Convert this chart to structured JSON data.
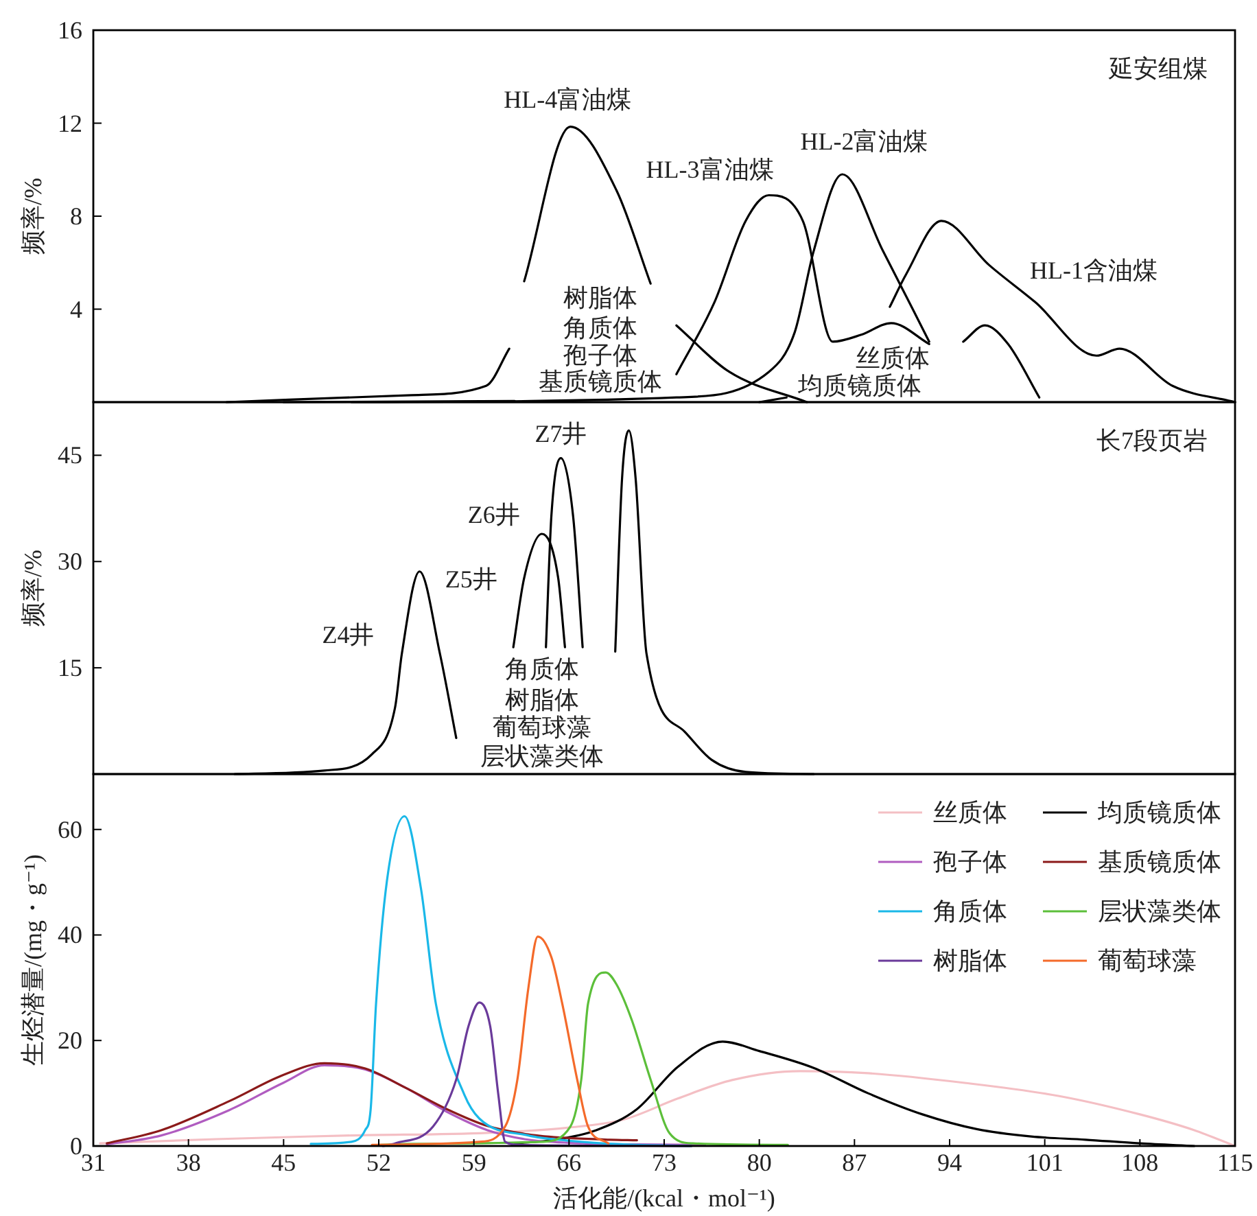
{
  "chart_data": [
    {
      "type": "line",
      "title": "延安组煤",
      "ylabel": "频率/%",
      "xlim": [
        31,
        115
      ],
      "ylim": [
        0,
        16
      ],
      "xticks": [
        31,
        38,
        45,
        52,
        59,
        66,
        73,
        80,
        87,
        94,
        101,
        108,
        115
      ],
      "yticks": [
        4,
        8,
        12,
        16
      ],
      "tick_labels": "y",
      "series": [
        {
          "name": "HL-4富油煤",
          "color": "#000000",
          "x": [
            40.8,
            54.4,
            59.9,
            61.6,
            62.2,
            62.7,
            66.1,
            69.5,
            72.0,
            73.0,
            73.9,
            77.8,
            83.5
          ],
          "values": [
            0,
            0.3,
            0.7,
            2.3,
            null,
            5.2,
            11.85,
            9.1,
            5.1,
            null,
            3.3,
            1.3,
            0
          ]
        },
        {
          "name": "HL-3富油煤",
          "color": "#000000",
          "x": [
            45,
            62,
            67,
            73.9,
            76.7,
            79.0,
            80.7,
            83.2,
            85.4,
            87.5,
            89.7,
            92.5
          ],
          "values": [
            0,
            0.05,
            null,
            1.2,
            4.3,
            7.8,
            8.9,
            7.8,
            2.6,
            2.9,
            3.4,
            2.5
          ]
        },
        {
          "name": "HL-2富油煤",
          "color": "#000000",
          "x": [
            50,
            73.9,
            80.7,
            82.6,
            84.0,
            86.1,
            89.1,
            92.5
          ],
          "values": [
            0,
            0.2,
            1.3,
            3.0,
            6.5,
            9.8,
            6.5,
            2.6
          ]
        },
        {
          "name": "HL-1含油煤",
          "color": "#000000",
          "x": [
            80,
            82,
            84,
            89.6,
            90.8,
            93.4,
            96.9,
            100.3,
            104.8,
            106.5,
            110.4,
            115
          ],
          "values": [
            0,
            0.2,
            null,
            4.1,
            5.5,
            7.8,
            5.9,
            4.3,
            2.0,
            2.3,
            0.7,
            0
          ]
        },
        {
          "color": "#000000",
          "x": [
            95.0,
            96.6,
            98.3,
            100.6
          ],
          "values": [
            2.6,
            3.3,
            2.5,
            0.2
          ]
        }
      ],
      "annotations": [
        "树脂体",
        "角质体",
        "孢子体",
        "基质镜质体",
        "丝质体",
        "均质镜质体"
      ]
    },
    {
      "type": "line",
      "title": "长7段页岩",
      "ylabel": "频率/%",
      "xlim": [
        31,
        115
      ],
      "ylim": [
        0,
        52.5
      ],
      "xticks": [
        31,
        38,
        45,
        52,
        59,
        66,
        73,
        80,
        87,
        94,
        101,
        108,
        115
      ],
      "yticks": [
        15,
        30,
        45
      ],
      "tick_labels": "y",
      "series": [
        {
          "name": "Z4井",
          "color": "#000000",
          "x": [
            41.4,
            48,
            51.5,
            53.2,
            53.7,
            55.0,
            56.5,
            57.7
          ],
          "values": [
            0,
            0.5,
            2.8,
            9.4,
            17,
            28.6,
            17,
            5.1
          ]
        },
        {
          "name": "Z6井",
          "color": "#000000",
          "x": [
            61.9,
            62.7,
            64.0,
            65.2,
            65.7
          ],
          "values": [
            17.9,
            27.7,
            33.9,
            27.7,
            17.9
          ]
        },
        {
          "name": "Z7井",
          "color": "#000000",
          "x": [
            64.3,
            64.7,
            65.4,
            66.3,
            67.0
          ],
          "values": [
            17.9,
            36.4,
            44.6,
            36.4,
            17.9
          ]
        },
        {
          "color": "#000000",
          "x": [
            69.4,
            69.9,
            70.4,
            70.9,
            71.7,
            74.5,
            76.5,
            79,
            84
          ],
          "values": [
            17.3,
            41.7,
            48.5,
            41.7,
            17,
            6.0,
            2.0,
            0.3,
            0
          ]
        }
      ],
      "annotations": [
        "Z5井",
        "角质体",
        "树脂体",
        "葡萄球藻",
        "层状藻类体"
      ]
    },
    {
      "type": "line",
      "xlabel": "活化能/(kcal・mol⁻¹)",
      "ylabel": "生烃潜量/(mg・g⁻¹)",
      "xlim": [
        31,
        115
      ],
      "ylim": [
        0,
        70.5
      ],
      "xticks": [
        31,
        38,
        45,
        52,
        59,
        66,
        73,
        80,
        87,
        94,
        101,
        108,
        115
      ],
      "yticks": [
        0,
        20,
        40,
        60
      ],
      "legend": "top right",
      "series": [
        {
          "name": "丝质体",
          "color": "#f4bfc4",
          "x": [
            31.5,
            40,
            50,
            60,
            66,
            70,
            74,
            78,
            83,
            88,
            95,
            102,
            108,
            112,
            115
          ],
          "values": [
            0.5,
            1.3,
            2,
            2.5,
            3.5,
            5,
            9,
            12.5,
            14.2,
            13.8,
            12,
            9.5,
            6,
            3,
            0
          ]
        },
        {
          "name": "均质镜质体",
          "color": "#000000",
          "x": [
            62,
            65,
            68,
            71,
            74,
            77.3,
            80,
            84,
            88,
            92,
            96,
            100,
            104,
            108,
            112
          ],
          "values": [
            0.5,
            1.2,
            3,
            7,
            15,
            19.8,
            18,
            14.8,
            10,
            6,
            3.2,
            1.8,
            1.2,
            0.5,
            0
          ]
        },
        {
          "name": "孢子体",
          "color": "#b05cc0",
          "x": [
            32,
            36,
            41,
            45,
            48,
            51,
            54,
            57,
            60,
            63,
            67,
            71,
            76
          ],
          "values": [
            0.3,
            2.0,
            6.8,
            12,
            15.3,
            14.5,
            11,
            6.5,
            3,
            1.2,
            0.5,
            0.3,
            0.2
          ]
        },
        {
          "name": "基质镜质体",
          "color": "#8b1a1a",
          "x": [
            32,
            36,
            41,
            45,
            48,
            51,
            54,
            57,
            60,
            63,
            66,
            69,
            71
          ],
          "values": [
            0.5,
            3,
            8.5,
            13.5,
            15.7,
            14.7,
            11,
            7,
            3.8,
            2.2,
            1.5,
            1.2,
            1.1
          ]
        },
        {
          "name": "角质体",
          "color": "#1ab8e8",
          "x": [
            47,
            50,
            51.0,
            51.4,
            51.8,
            52.6,
            53.9,
            55.1,
            56.2,
            58.3,
            59.4,
            63,
            66,
            70,
            75
          ],
          "values": [
            0.4,
            0.8,
            3,
            6.8,
            26.9,
            50.2,
            62.5,
            48.9,
            27,
            9.7,
            5.2,
            2,
            1,
            0.3,
            0
          ]
        },
        {
          "name": "层状藻类体",
          "color": "#5cbf3a",
          "x": [
            52,
            54.4,
            64.0,
            66.1,
            66.9,
            67.4,
            68.7,
            69.5,
            70.6,
            72.0,
            73.4,
            75.1,
            82.1
          ],
          "values": [
            0.2,
            0.4,
            0.8,
            3.7,
            12.6,
            27,
            32.9,
            30.6,
            24,
            12.6,
            2.4,
            0.5,
            0.2
          ]
        },
        {
          "name": "树脂体",
          "color": "#6a3a9a",
          "x": [
            52.3,
            53.2,
            56.0,
            57.7,
            58.6,
            59.4,
            60.2,
            60.8,
            61.3,
            62.4,
            75
          ],
          "values": [
            0,
            0.5,
            3.7,
            12.6,
            22.7,
            27.2,
            22.7,
            9.7,
            0.8,
            0.2,
            0
          ]
        },
        {
          "name": "葡萄球藻",
          "color": "#f46a2a",
          "x": [
            51.5,
            59.4,
            61.3,
            62.2,
            63.0,
            63.7,
            64.7,
            65.5,
            66.6,
            67.4,
            68.9
          ],
          "values": [
            0.2,
            0.8,
            3.7,
            12.6,
            29.8,
            39.7,
            35.8,
            27,
            12.6,
            3.7,
            0.5
          ]
        }
      ]
    }
  ]
}
